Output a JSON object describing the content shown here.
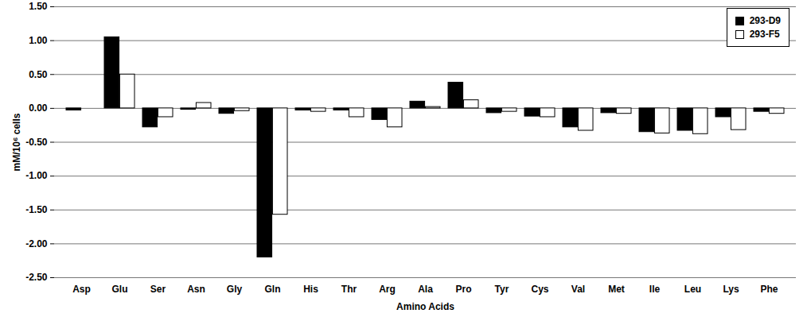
{
  "chart_data": {
    "type": "bar",
    "x_label": "Amino Acids",
    "y_label": "mM/10⁶ cells",
    "categories": [
      "Asp",
      "Glu",
      "Ser",
      "Asn",
      "Gly",
      "Gln",
      "His",
      "Thr",
      "Arg",
      "Ala",
      "Pro",
      "Tyr",
      "Cys",
      "Val",
      "Met",
      "Ile",
      "Leu",
      "Lys",
      "Phe"
    ],
    "series": [
      {
        "name": "293-D9",
        "color": "#000000",
        "values": [
          -0.03,
          1.05,
          -0.28,
          -0.02,
          -0.08,
          -2.2,
          -0.03,
          -0.03,
          -0.17,
          0.1,
          0.38,
          -0.07,
          -0.12,
          -0.28,
          -0.07,
          -0.35,
          -0.33,
          -0.13,
          -0.05
        ]
      },
      {
        "name": "293-F5",
        "color": "#ffffff",
        "values": [
          0.0,
          0.5,
          -0.13,
          0.08,
          -0.04,
          -1.57,
          -0.05,
          -0.13,
          -0.28,
          0.02,
          0.12,
          -0.05,
          -0.13,
          -0.33,
          -0.08,
          -0.37,
          -0.38,
          -0.32,
          -0.08
        ]
      }
    ],
    "ylim": [
      -2.5,
      1.5
    ],
    "yticks": [
      {
        "value": -2.5,
        "label": "-2.50"
      },
      {
        "value": -2,
        "label": "-2.00"
      },
      {
        "value": -1.5,
        "label": "-1.50"
      },
      {
        "value": -1,
        "label": "-1.00"
      },
      {
        "value": -0.5,
        "label": "-0.50"
      },
      {
        "value": 0,
        "label": "0.00"
      },
      {
        "value": 0.5,
        "label": "0.50"
      },
      {
        "value": 1,
        "label": "1.00"
      },
      {
        "value": 1.5,
        "label": "1.50"
      }
    ],
    "grid": true,
    "legend": "top-right"
  }
}
